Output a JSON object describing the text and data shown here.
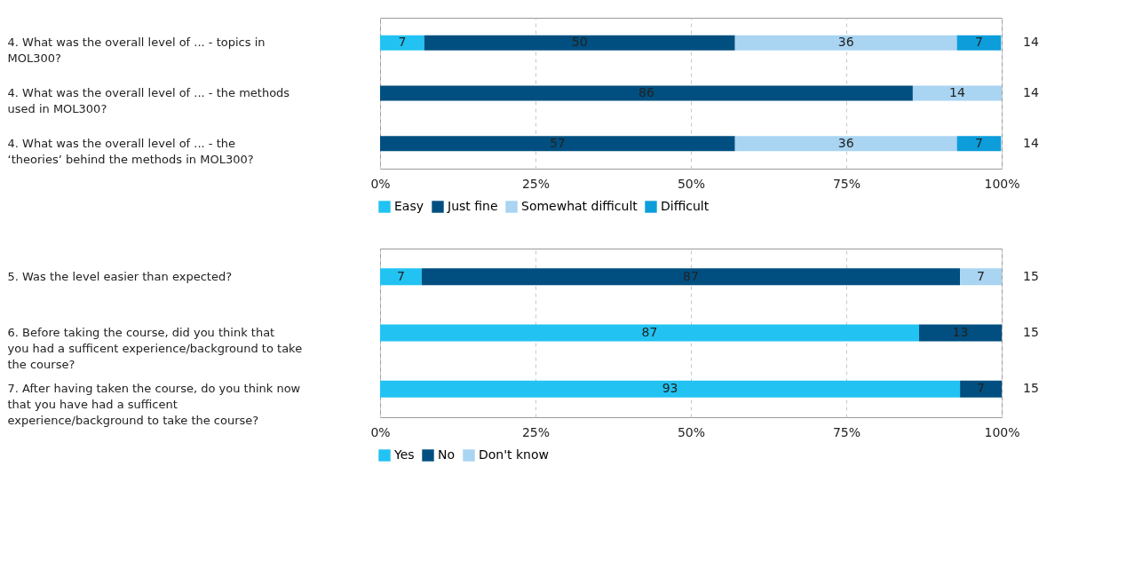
{
  "chart_data": [
    {
      "type": "bar",
      "orientation": "horizontal",
      "stacked": true,
      "categories": [
        "4. What was the overall level of ... - topics in MOL300?",
        "4. What was the overall level of ... - the methods used in MOL300?",
        "4. What was the overall level of ... - the ‘theories’ behind the methods in MOL300?"
      ],
      "series": [
        {
          "name": "Easy",
          "color": "#22c3f2",
          "values": [
            7.1,
            null,
            null
          ],
          "value_labels": [
            "7",
            null,
            null
          ]
        },
        {
          "name": "Just fine",
          "color": "#004f80",
          "values": [
            50,
            85.7,
            57.1
          ],
          "value_labels": [
            "50",
            "86",
            "57"
          ]
        },
        {
          "name": "Somewhat difficult",
          "color": "#a9d4f2",
          "values": [
            35.7,
            14.3,
            35.7
          ],
          "value_labels": [
            "36",
            "14",
            "36"
          ]
        },
        {
          "name": "Difficult",
          "color": "#0d9ddb",
          "values": [
            7.1,
            null,
            7.1
          ],
          "value_labels": [
            "7",
            null,
            "7"
          ]
        }
      ],
      "xlim": [
        0,
        100
      ],
      "xticks": [
        {
          "value": 0,
          "label": "0%"
        },
        {
          "value": 25,
          "label": "25%"
        },
        {
          "value": 50,
          "label": "50%"
        },
        {
          "value": 75,
          "label": "75%"
        },
        {
          "value": 100,
          "label": "100%"
        }
      ],
      "grid": "x",
      "legend": "bottom left",
      "annotations": [
        "14",
        "14",
        "14"
      ]
    },
    {
      "type": "bar",
      "orientation": "horizontal",
      "stacked": true,
      "categories": [
        "5. Was the level easier than expected?",
        "6. Before taking the course, did you think that you had a sufficent experience/background to take the course?",
        "7. After having taken the course, do you think now that you have had a sufficent experience/background to take the course?"
      ],
      "series": [
        {
          "name": "Yes",
          "color": "#22c3f2",
          "values": [
            6.7,
            86.7,
            93.3
          ],
          "value_labels": [
            "7",
            "87",
            "93"
          ]
        },
        {
          "name": "No",
          "color": "#004f80",
          "values": [
            86.6,
            13.3,
            6.7
          ],
          "value_labels": [
            "87",
            "13",
            "7"
          ]
        },
        {
          "name": "Don't know",
          "color": "#a9d4f2",
          "values": [
            6.7,
            null,
            null
          ],
          "value_labels": [
            "7",
            null,
            null
          ]
        }
      ],
      "xlim": [
        0,
        100
      ],
      "xticks": [
        {
          "value": 0,
          "label": "0%"
        },
        {
          "value": 25,
          "label": "25%"
        },
        {
          "value": 50,
          "label": "50%"
        },
        {
          "value": 75,
          "label": "75%"
        },
        {
          "value": 100,
          "label": "100%"
        }
      ],
      "grid": "x",
      "legend": "bottom left",
      "annotations": [
        "15",
        "15",
        "15"
      ]
    }
  ]
}
